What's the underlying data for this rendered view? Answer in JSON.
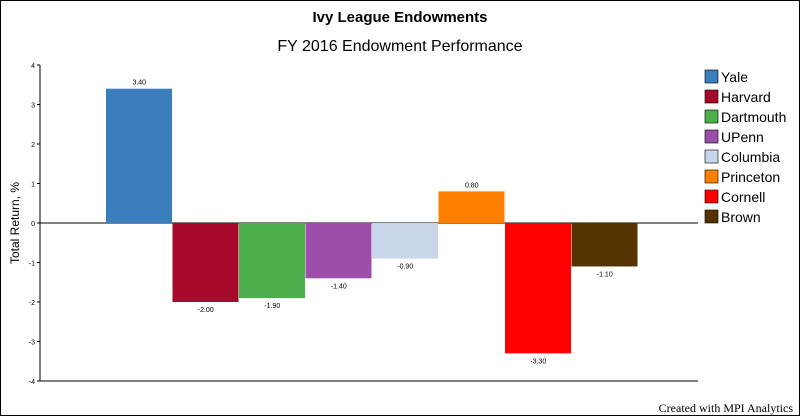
{
  "title": "Ivy League Endowments",
  "subtitle": "FY 2016 Endowment Performance",
  "credit": "Created with MPI Analytics",
  "chart_data": {
    "type": "bar",
    "title": "Ivy League Endowments",
    "subtitle": "FY 2016 Endowment Performance",
    "xlabel": "",
    "ylabel": "Total Return, %",
    "ylim": [
      -4,
      4
    ],
    "yticks": [
      4,
      3,
      2,
      1,
      0,
      -1,
      -2,
      -3,
      -4
    ],
    "grid": false,
    "legend_position": "right",
    "series": [
      {
        "name": "Yale",
        "value": 3.4,
        "label": "3.40",
        "color": "#3a7ebd"
      },
      {
        "name": "Harvard",
        "value": -2.0,
        "label": "-2.00",
        "color": "#a50a2a"
      },
      {
        "name": "Dartmouth",
        "value": -1.9,
        "label": "-1.90",
        "color": "#4caf4c"
      },
      {
        "name": "UPenn",
        "value": -1.4,
        "label": "-1.40",
        "color": "#9b4fa9"
      },
      {
        "name": "Columbia",
        "value": -0.9,
        "label": "-0.90",
        "color": "#c9d5e8"
      },
      {
        "name": "Princeton",
        "value": 0.8,
        "label": "0.80",
        "color": "#ff8000"
      },
      {
        "name": "Cornell",
        "value": -3.3,
        "label": "-3.30",
        "color": "#ff0000"
      },
      {
        "name": "Brown",
        "value": -1.1,
        "label": "-1.10",
        "color": "#553300"
      }
    ]
  }
}
